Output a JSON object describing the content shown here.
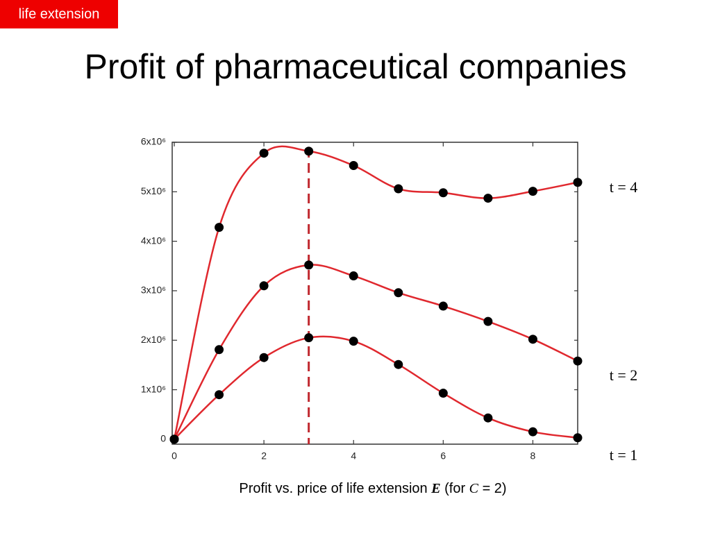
{
  "tag": "life extension",
  "title": "Profit of pharmaceutical companies",
  "caption": {
    "parts": [
      "Profit vs. price of life extension ",
      "E",
      " (for ",
      "C",
      " = 2)"
    ]
  },
  "chart_data": {
    "type": "scatter-spline",
    "x": [
      0,
      1,
      2,
      3,
      4,
      5,
      6,
      7,
      8,
      9
    ],
    "xlim": [
      0,
      9
    ],
    "xticks": [
      0,
      2,
      4,
      6,
      8
    ],
    "ylim": [
      -100000,
      6000000
    ],
    "yticks": [
      0,
      {
        "value": 1000000,
        "label": "1x10⁶"
      },
      {
        "value": 2000000,
        "label": "2x10⁶"
      },
      {
        "value": 3000000,
        "label": "3x10⁶"
      },
      {
        "value": 4000000,
        "label": "4x10⁶"
      },
      {
        "value": 5000000,
        "label": "5x10⁶"
      },
      {
        "value": 6000000,
        "label": "6x10⁶"
      }
    ],
    "marker_color": "#000000",
    "reference_line": {
      "x": 3,
      "color": "#c0282e",
      "style": "dashed"
    },
    "series": [
      {
        "name": "t = 4",
        "color": "#e0282e",
        "values": [
          0,
          4280000,
          5780000,
          5820000,
          5530000,
          5060000,
          4980000,
          4870000,
          5010000,
          5190000
        ]
      },
      {
        "name": "t = 2",
        "color": "#e0282e",
        "values": [
          0,
          1810000,
          3100000,
          3520000,
          3300000,
          2960000,
          2690000,
          2380000,
          2020000,
          1580000
        ]
      },
      {
        "name": "t = 1",
        "color": "#e0282e",
        "values": [
          0,
          900000,
          1650000,
          2050000,
          1980000,
          1510000,
          930000,
          430000,
          150000,
          30000
        ]
      }
    ]
  }
}
